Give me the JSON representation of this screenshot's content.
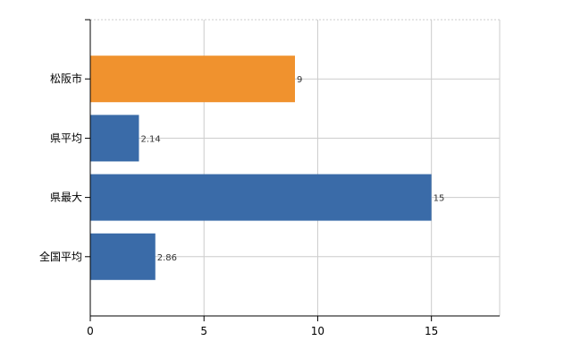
{
  "chart_data": {
    "type": "bar",
    "orientation": "horizontal",
    "categories": [
      "松阪市",
      "県平均",
      "県最大",
      "全国平均"
    ],
    "values": [
      9,
      2.14,
      15,
      2.86
    ],
    "data_labels": [
      "9",
      "2.14",
      "15",
      "2.86"
    ],
    "bar_colors": [
      "#f0922e",
      "#3a6ba8",
      "#3a6ba8",
      "#3a6ba8"
    ],
    "xlim": [
      0,
      18
    ],
    "xticks": [
      0,
      5,
      10,
      15
    ],
    "grid": true,
    "title": "",
    "xlabel": "",
    "ylabel": ""
  }
}
